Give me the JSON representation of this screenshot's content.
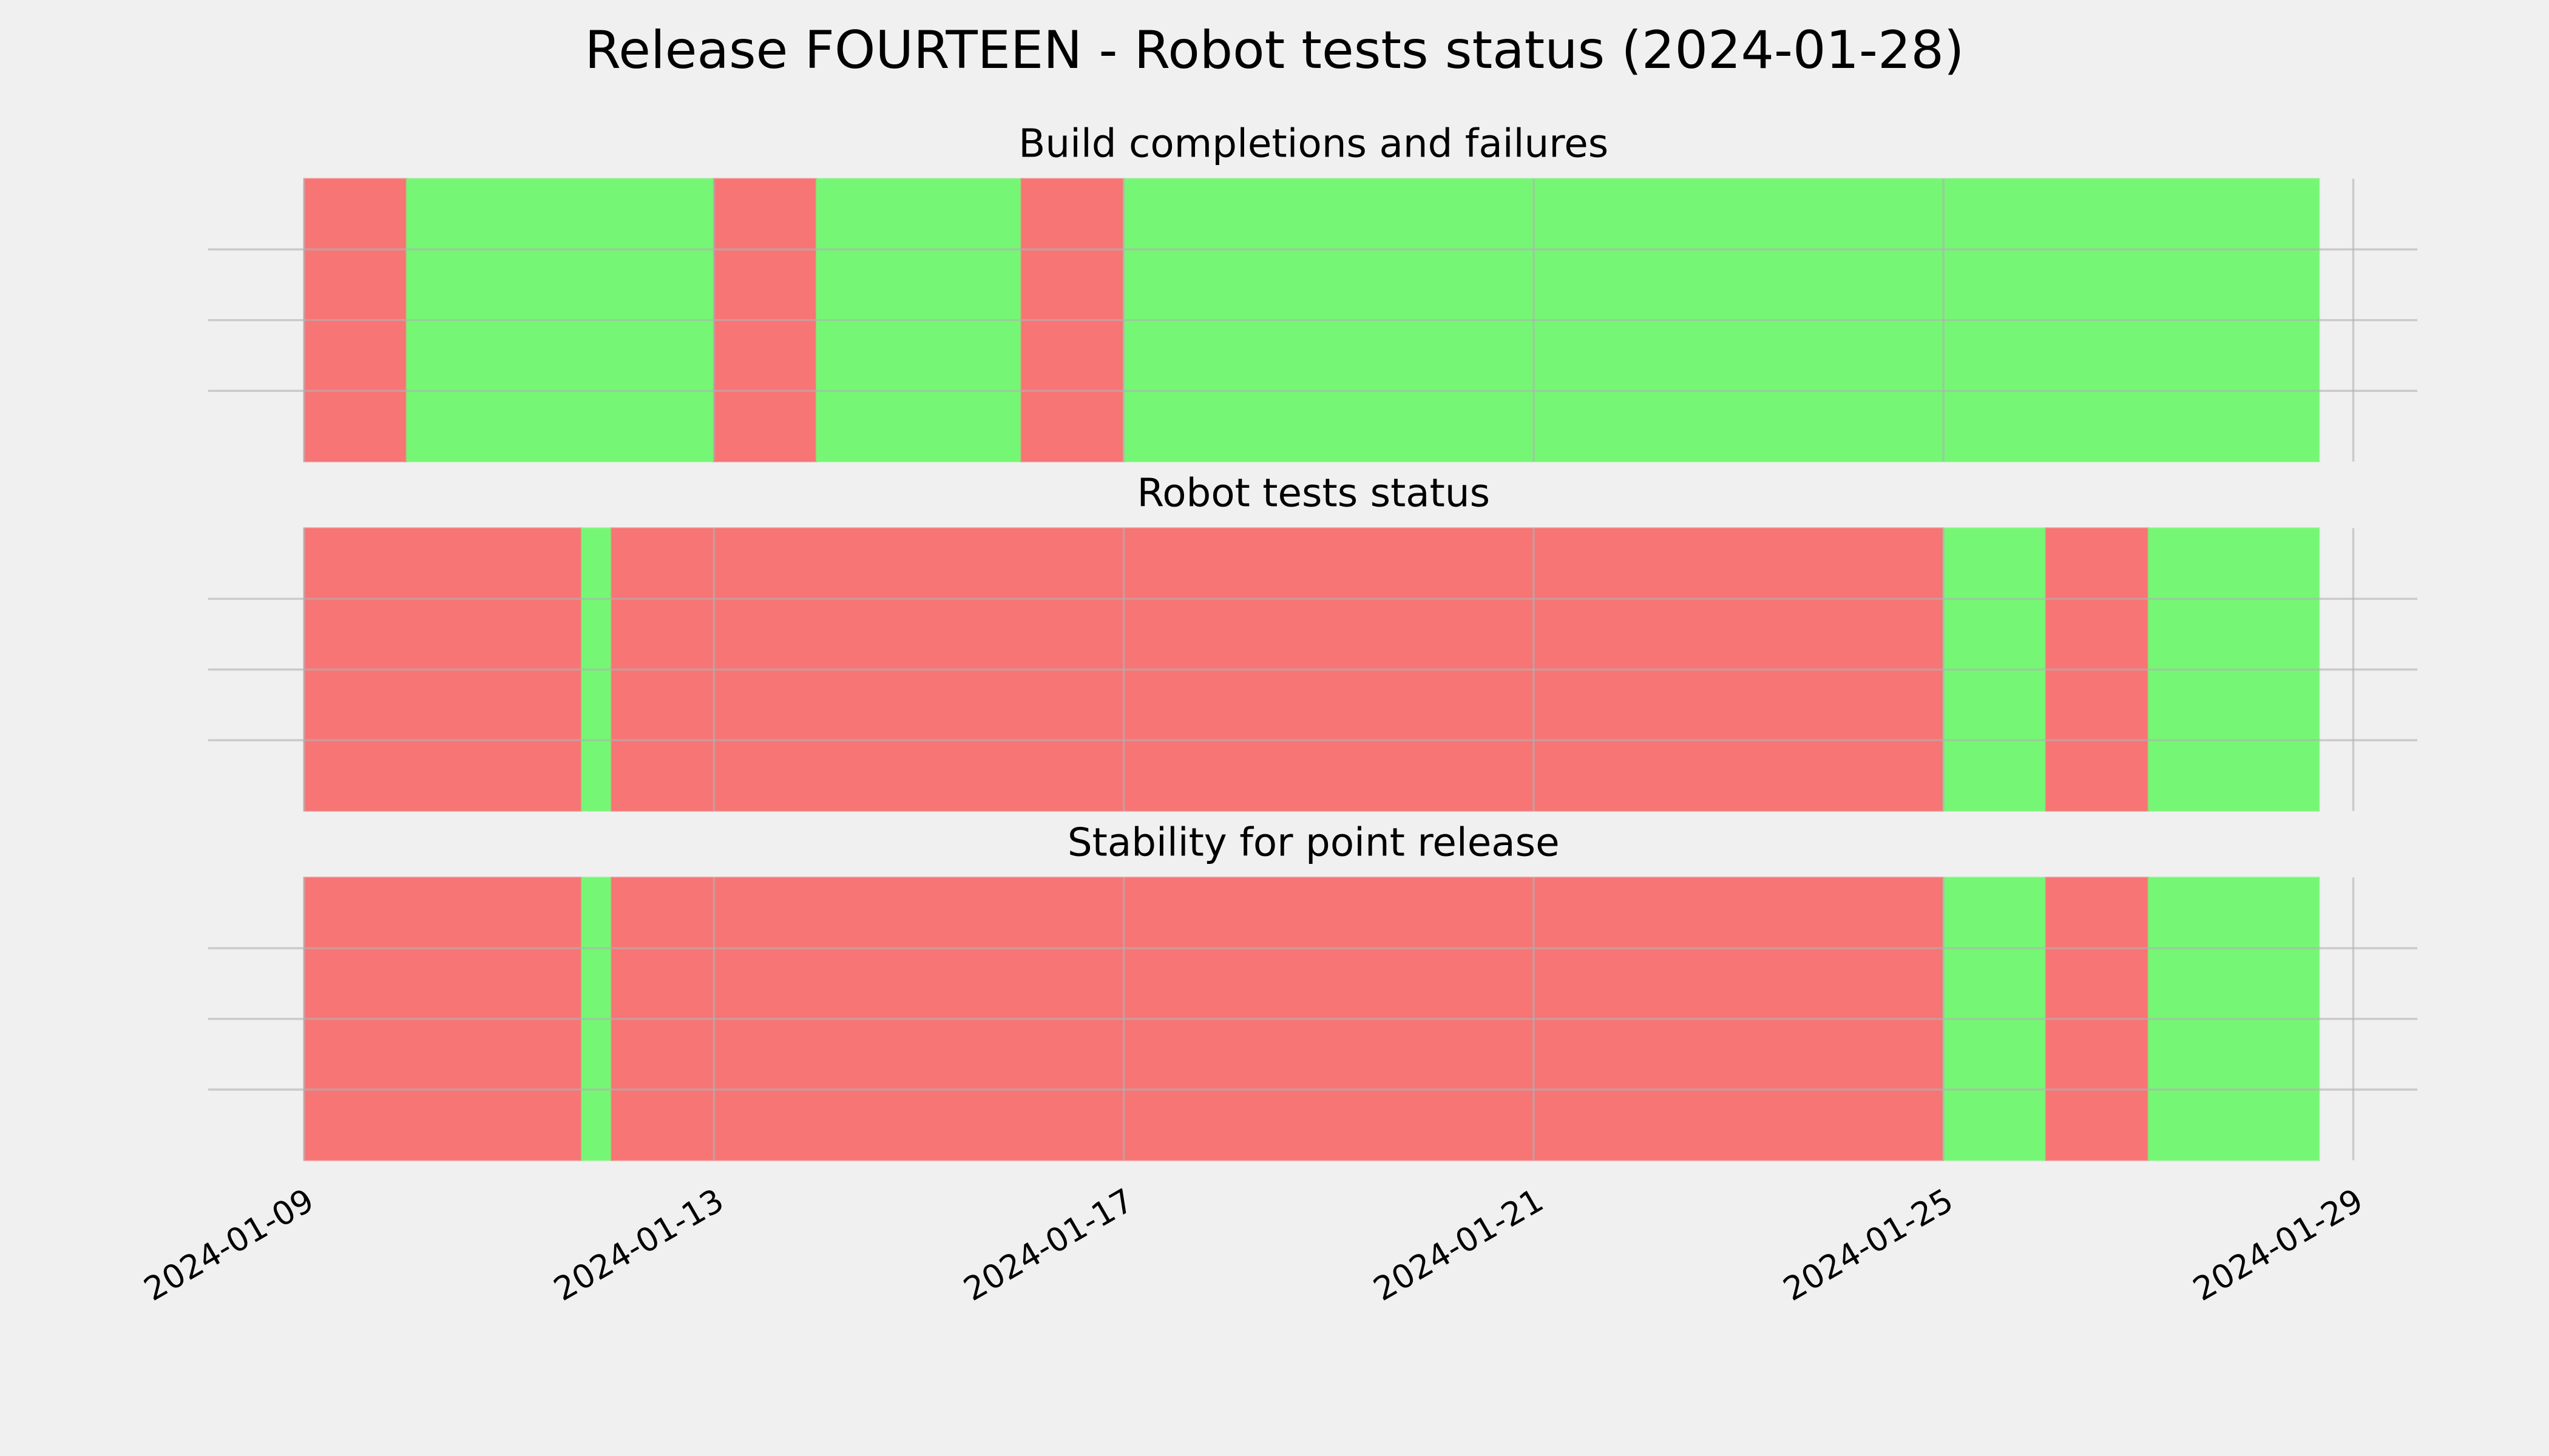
{
  "title": "Release FOURTEEN - Robot tests status (2024-01-28)",
  "chart_data": [
    {
      "type": "timeline",
      "title": "Build completions and failures",
      "x": [
        "2024-01-09 00:00",
        "2024-01-10 00:00",
        "2024-01-13 00:00",
        "2024-01-14 00:00",
        "2024-01-16 00:00",
        "2024-01-17 00:00",
        "2024-01-28 16:00"
      ],
      "colors": [
        "#f77575",
        "#75f775",
        "#f77575",
        "#75f775",
        "#f77575",
        "#75f775"
      ],
      "xlim": [
        "2024-01-08 01:30",
        "2024-01-29 15:00"
      ],
      "xticks": [
        "2024-01-09",
        "2024-01-13",
        "2024-01-17",
        "2024-01-21",
        "2024-01-25",
        "2024-01-29"
      ],
      "ylim": [
        0,
        1
      ],
      "yticks": [
        0.25,
        0.5,
        0.75
      ],
      "grid": true
    },
    {
      "type": "timeline",
      "title": "Robot tests status",
      "x": [
        "2024-01-09 00:00",
        "2024-01-11 17:00",
        "2024-01-12 00:00",
        "2024-01-25 00:00",
        "2024-01-26 00:00",
        "2024-01-27 00:00",
        "2024-01-28 16:00"
      ],
      "colors": [
        "#f77575",
        "#75f775",
        "#f77575",
        "#75f775",
        "#f77575",
        "#75f775"
      ],
      "xlim": [
        "2024-01-08 01:30",
        "2024-01-29 15:00"
      ],
      "xticks": [
        "2024-01-09",
        "2024-01-13",
        "2024-01-17",
        "2024-01-21",
        "2024-01-25",
        "2024-01-29"
      ],
      "ylim": [
        0,
        1
      ],
      "yticks": [
        0.25,
        0.5,
        0.75
      ],
      "grid": true
    },
    {
      "type": "timeline",
      "title": "Stability for point release",
      "x": [
        "2024-01-09 00:00",
        "2024-01-11 17:00",
        "2024-01-12 00:00",
        "2024-01-25 00:00",
        "2024-01-26 00:00",
        "2024-01-27 00:00",
        "2024-01-28 16:00"
      ],
      "colors": [
        "#f77575",
        "#75f775",
        "#f77575",
        "#75f775",
        "#f77575",
        "#75f775"
      ],
      "xlim": [
        "2024-01-08 01:30",
        "2024-01-29 15:00"
      ],
      "xticks": [
        "2024-01-09",
        "2024-01-13",
        "2024-01-17",
        "2024-01-21",
        "2024-01-25",
        "2024-01-29"
      ],
      "ylim": [
        0,
        1
      ],
      "yticks": [
        0.25,
        0.5,
        0.75
      ],
      "grid": true,
      "show_xtick_labels": true
    }
  ]
}
